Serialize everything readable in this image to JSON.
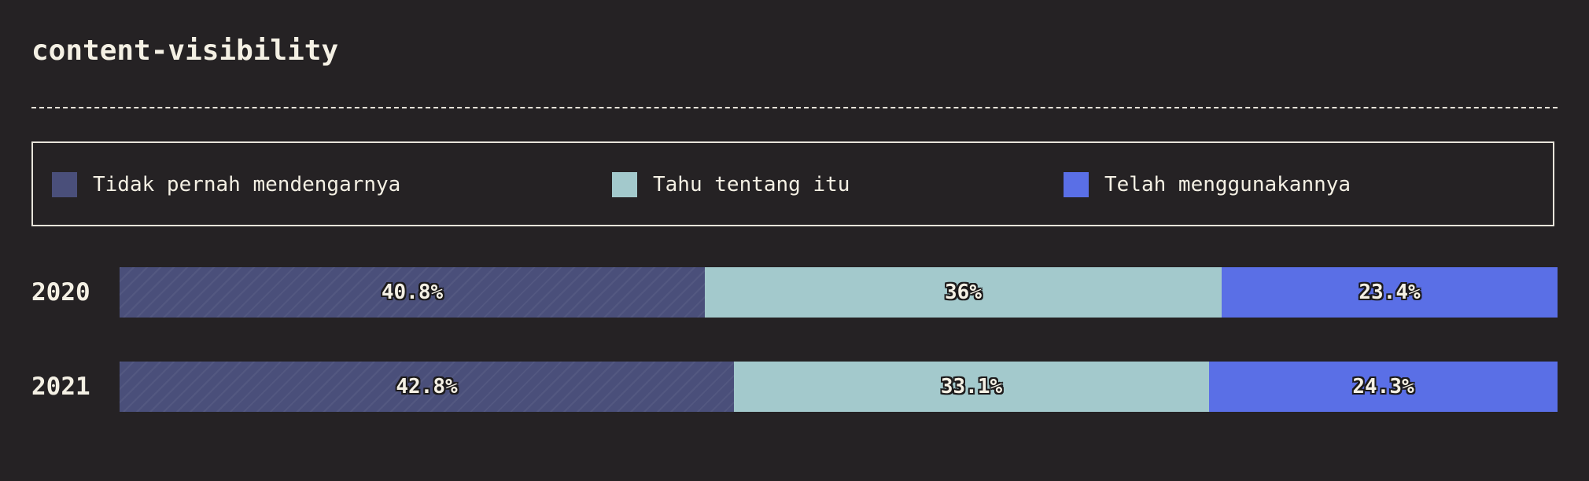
{
  "title": "content-visibility",
  "chart_data": {
    "type": "bar",
    "orientation": "horizontal-stacked",
    "categories": [
      "2020",
      "2021"
    ],
    "series": [
      {
        "name": "Tidak pernah mendengarnya",
        "color": "#4a4f7a",
        "values": [
          40.8,
          42.8
        ],
        "labels": [
          "40.8%",
          "42.8%"
        ]
      },
      {
        "name": "Tahu tentang itu",
        "color": "#a3c9cc",
        "values": [
          36,
          33.1
        ],
        "labels": [
          "36%",
          "33.1%"
        ]
      },
      {
        "name": "Telah menggunakannya",
        "color": "#5a6fe6",
        "values": [
          23.4,
          24.3
        ],
        "labels": [
          "23.4%",
          "24.3%"
        ]
      }
    ],
    "xlim": [
      0,
      100
    ],
    "legend": "top",
    "grid": false
  }
}
